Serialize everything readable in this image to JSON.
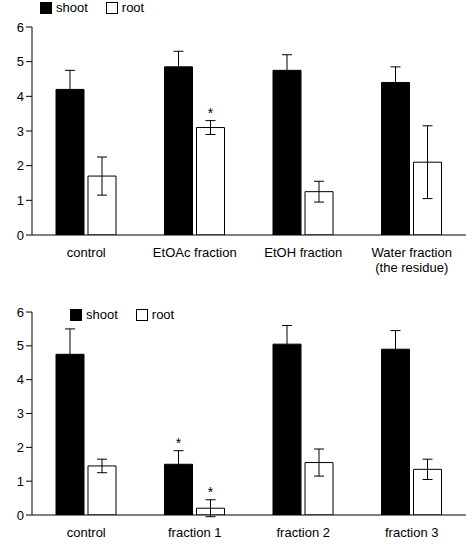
{
  "chart_data": [
    {
      "type": "bar",
      "categories": [
        "control",
        "EtOAc fraction",
        "EtOH fraction",
        "Water fraction\n(the residue)"
      ],
      "series": [
        {
          "name": "shoot",
          "color": "#000000",
          "values": [
            4.2,
            4.85,
            4.75,
            4.4
          ],
          "errors": [
            0.55,
            0.45,
            0.45,
            0.45
          ],
          "significance": [
            null,
            null,
            null,
            null
          ]
        },
        {
          "name": "root",
          "color": "#ffffff",
          "values": [
            1.7,
            3.1,
            1.25,
            2.1
          ],
          "errors": [
            0.55,
            0.2,
            0.3,
            1.05
          ],
          "significance": [
            null,
            "*",
            null,
            null
          ]
        }
      ],
      "ylim": [
        0,
        6
      ],
      "yticks": [
        0,
        1,
        2,
        3,
        4,
        5,
        6
      ],
      "legend": "upper left",
      "grid": false
    },
    {
      "type": "bar",
      "categories": [
        "control",
        "fraction 1",
        "fraction 2",
        "fraction 3"
      ],
      "series": [
        {
          "name": "shoot",
          "color": "#000000",
          "values": [
            4.75,
            1.5,
            5.05,
            4.9
          ],
          "errors": [
            0.75,
            0.4,
            0.55,
            0.55
          ],
          "significance": [
            null,
            "*",
            null,
            null
          ]
        },
        {
          "name": "root",
          "color": "#ffffff",
          "values": [
            1.45,
            0.2,
            1.55,
            1.35
          ],
          "errors": [
            0.2,
            0.25,
            0.4,
            0.3
          ],
          "significance": [
            null,
            "*",
            null,
            null
          ]
        }
      ],
      "ylim": [
        0,
        6
      ],
      "yticks": [
        0,
        1,
        2,
        3,
        4,
        5,
        6
      ],
      "legend": "upper left",
      "grid": false
    }
  ]
}
